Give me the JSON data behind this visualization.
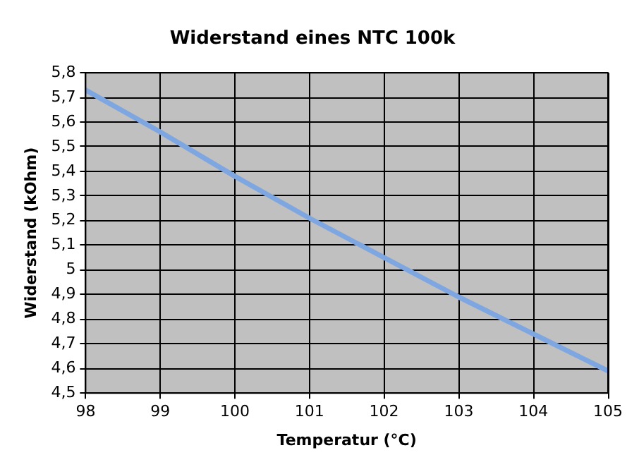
{
  "chart_data": {
    "type": "line",
    "title": "Widerstand eines NTC 100k",
    "xlabel": "Temperatur (°C)",
    "ylabel": "Widerstand (kOhm)",
    "x": [
      98,
      99,
      100,
      101,
      102,
      103,
      104,
      105
    ],
    "series": [
      {
        "color": "#7ea6e0",
        "values": [
          5.73,
          5.56,
          5.38,
          5.21,
          5.05,
          4.89,
          4.74,
          4.59
        ]
      }
    ],
    "xlim": [
      98,
      105
    ],
    "xticks": [
      98,
      99,
      100,
      101,
      102,
      103,
      104,
      105
    ],
    "ylim": [
      4.5,
      5.8
    ],
    "yticks": [
      {
        "value": 4.5,
        "label": "4,5"
      },
      {
        "value": 4.6,
        "label": "4,6"
      },
      {
        "value": 4.7,
        "label": "4,7"
      },
      {
        "value": 4.8,
        "label": "4,8"
      },
      {
        "value": 4.9,
        "label": "4,9"
      },
      {
        "value": 5,
        "label": "5"
      },
      {
        "value": 5.1,
        "label": "5,1"
      },
      {
        "value": 5.2,
        "label": "5,2"
      },
      {
        "value": 5.3,
        "label": "5,3"
      },
      {
        "value": 5.4,
        "label": "5,4"
      },
      {
        "value": 5.5,
        "label": "5,5"
      },
      {
        "value": 5.6,
        "label": "5,6"
      },
      {
        "value": 5.7,
        "label": "5,7"
      },
      {
        "value": 5.8,
        "label": "5,8"
      }
    ],
    "grid": true,
    "legend": false,
    "marker": "none",
    "line_style": "solid"
  }
}
